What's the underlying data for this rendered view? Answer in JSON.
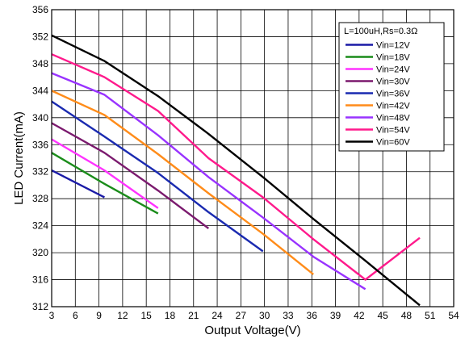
{
  "chart_data": {
    "type": "line",
    "title": "",
    "xlabel": "Output Voltage(V)",
    "ylabel": "LED Current(mA)",
    "xlim": [
      3,
      54
    ],
    "ylim": [
      312,
      356
    ],
    "x_ticks": [
      "3",
      "6",
      "9",
      "12",
      "15",
      "18",
      "21",
      "24",
      "27",
      "30",
      "33",
      "36",
      "39",
      "42",
      "45",
      "48",
      "51",
      "54"
    ],
    "y_ticks": [
      "312",
      "316",
      "320",
      "324",
      "328",
      "332",
      "336",
      "340",
      "344",
      "348",
      "352",
      "356"
    ],
    "grid": true,
    "legend_position": "top-right",
    "legend_title": "L=100uH,Rs=0.3Ω",
    "series": [
      {
        "name": "Vin=12V",
        "color": "#1a1aa6",
        "points": [
          [
            3,
            332.2
          ],
          [
            9.7,
            328.2
          ]
        ]
      },
      {
        "name": "Vin=18V",
        "color": "#1a8c1a",
        "points": [
          [
            3,
            334.8
          ],
          [
            9.7,
            330.2
          ],
          [
            16.5,
            325.8
          ]
        ]
      },
      {
        "name": "Vin=24V",
        "color": "#ff33ff",
        "points": [
          [
            3,
            336.8
          ],
          [
            9.7,
            332.2
          ],
          [
            16.5,
            326.6
          ]
        ]
      },
      {
        "name": "Vin=30V",
        "color": "#7b1a6e",
        "points": [
          [
            3,
            339.2
          ],
          [
            9.7,
            334.8
          ],
          [
            16.5,
            329.2
          ],
          [
            22.9,
            323.6
          ]
        ]
      },
      {
        "name": "Vin=36V",
        "color": "#1a2ab0",
        "points": [
          [
            3,
            342.4
          ],
          [
            9.7,
            337.2
          ],
          [
            16.5,
            331.8
          ],
          [
            22.9,
            326.0
          ],
          [
            29.8,
            320.2
          ]
        ]
      },
      {
        "name": "Vin=42V",
        "color": "#ff8c1a",
        "points": [
          [
            3,
            344.0
          ],
          [
            9.7,
            340.4
          ],
          [
            16.5,
            334.6
          ],
          [
            22.9,
            328.8
          ],
          [
            29.8,
            322.8
          ],
          [
            36.2,
            316.8
          ]
        ]
      },
      {
        "name": "Vin=48V",
        "color": "#9933ff",
        "points": [
          [
            3,
            346.6
          ],
          [
            9.7,
            343.4
          ],
          [
            16.5,
            337.4
          ],
          [
            22.9,
            331.2
          ],
          [
            29.8,
            325.2
          ],
          [
            36.2,
            319.4
          ],
          [
            42.8,
            314.6
          ]
        ]
      },
      {
        "name": "Vin=54V",
        "color": "#ff1a8c",
        "points": [
          [
            3,
            349.4
          ],
          [
            9.7,
            346.0
          ],
          [
            16.5,
            341.0
          ],
          [
            22.9,
            334.0
          ],
          [
            29.8,
            328.2
          ],
          [
            36.2,
            322.0
          ],
          [
            42.8,
            316.0
          ],
          [
            49.7,
            322.2
          ]
        ]
      },
      {
        "name": "Vin=60V",
        "color": "#000000",
        "points": [
          [
            3,
            352.2
          ],
          [
            9.7,
            348.4
          ],
          [
            16.5,
            343.2
          ],
          [
            22.9,
            337.6
          ],
          [
            29.8,
            331.2
          ],
          [
            36.2,
            325.0
          ],
          [
            42.8,
            318.8
          ],
          [
            49.7,
            312.2
          ]
        ]
      }
    ]
  }
}
